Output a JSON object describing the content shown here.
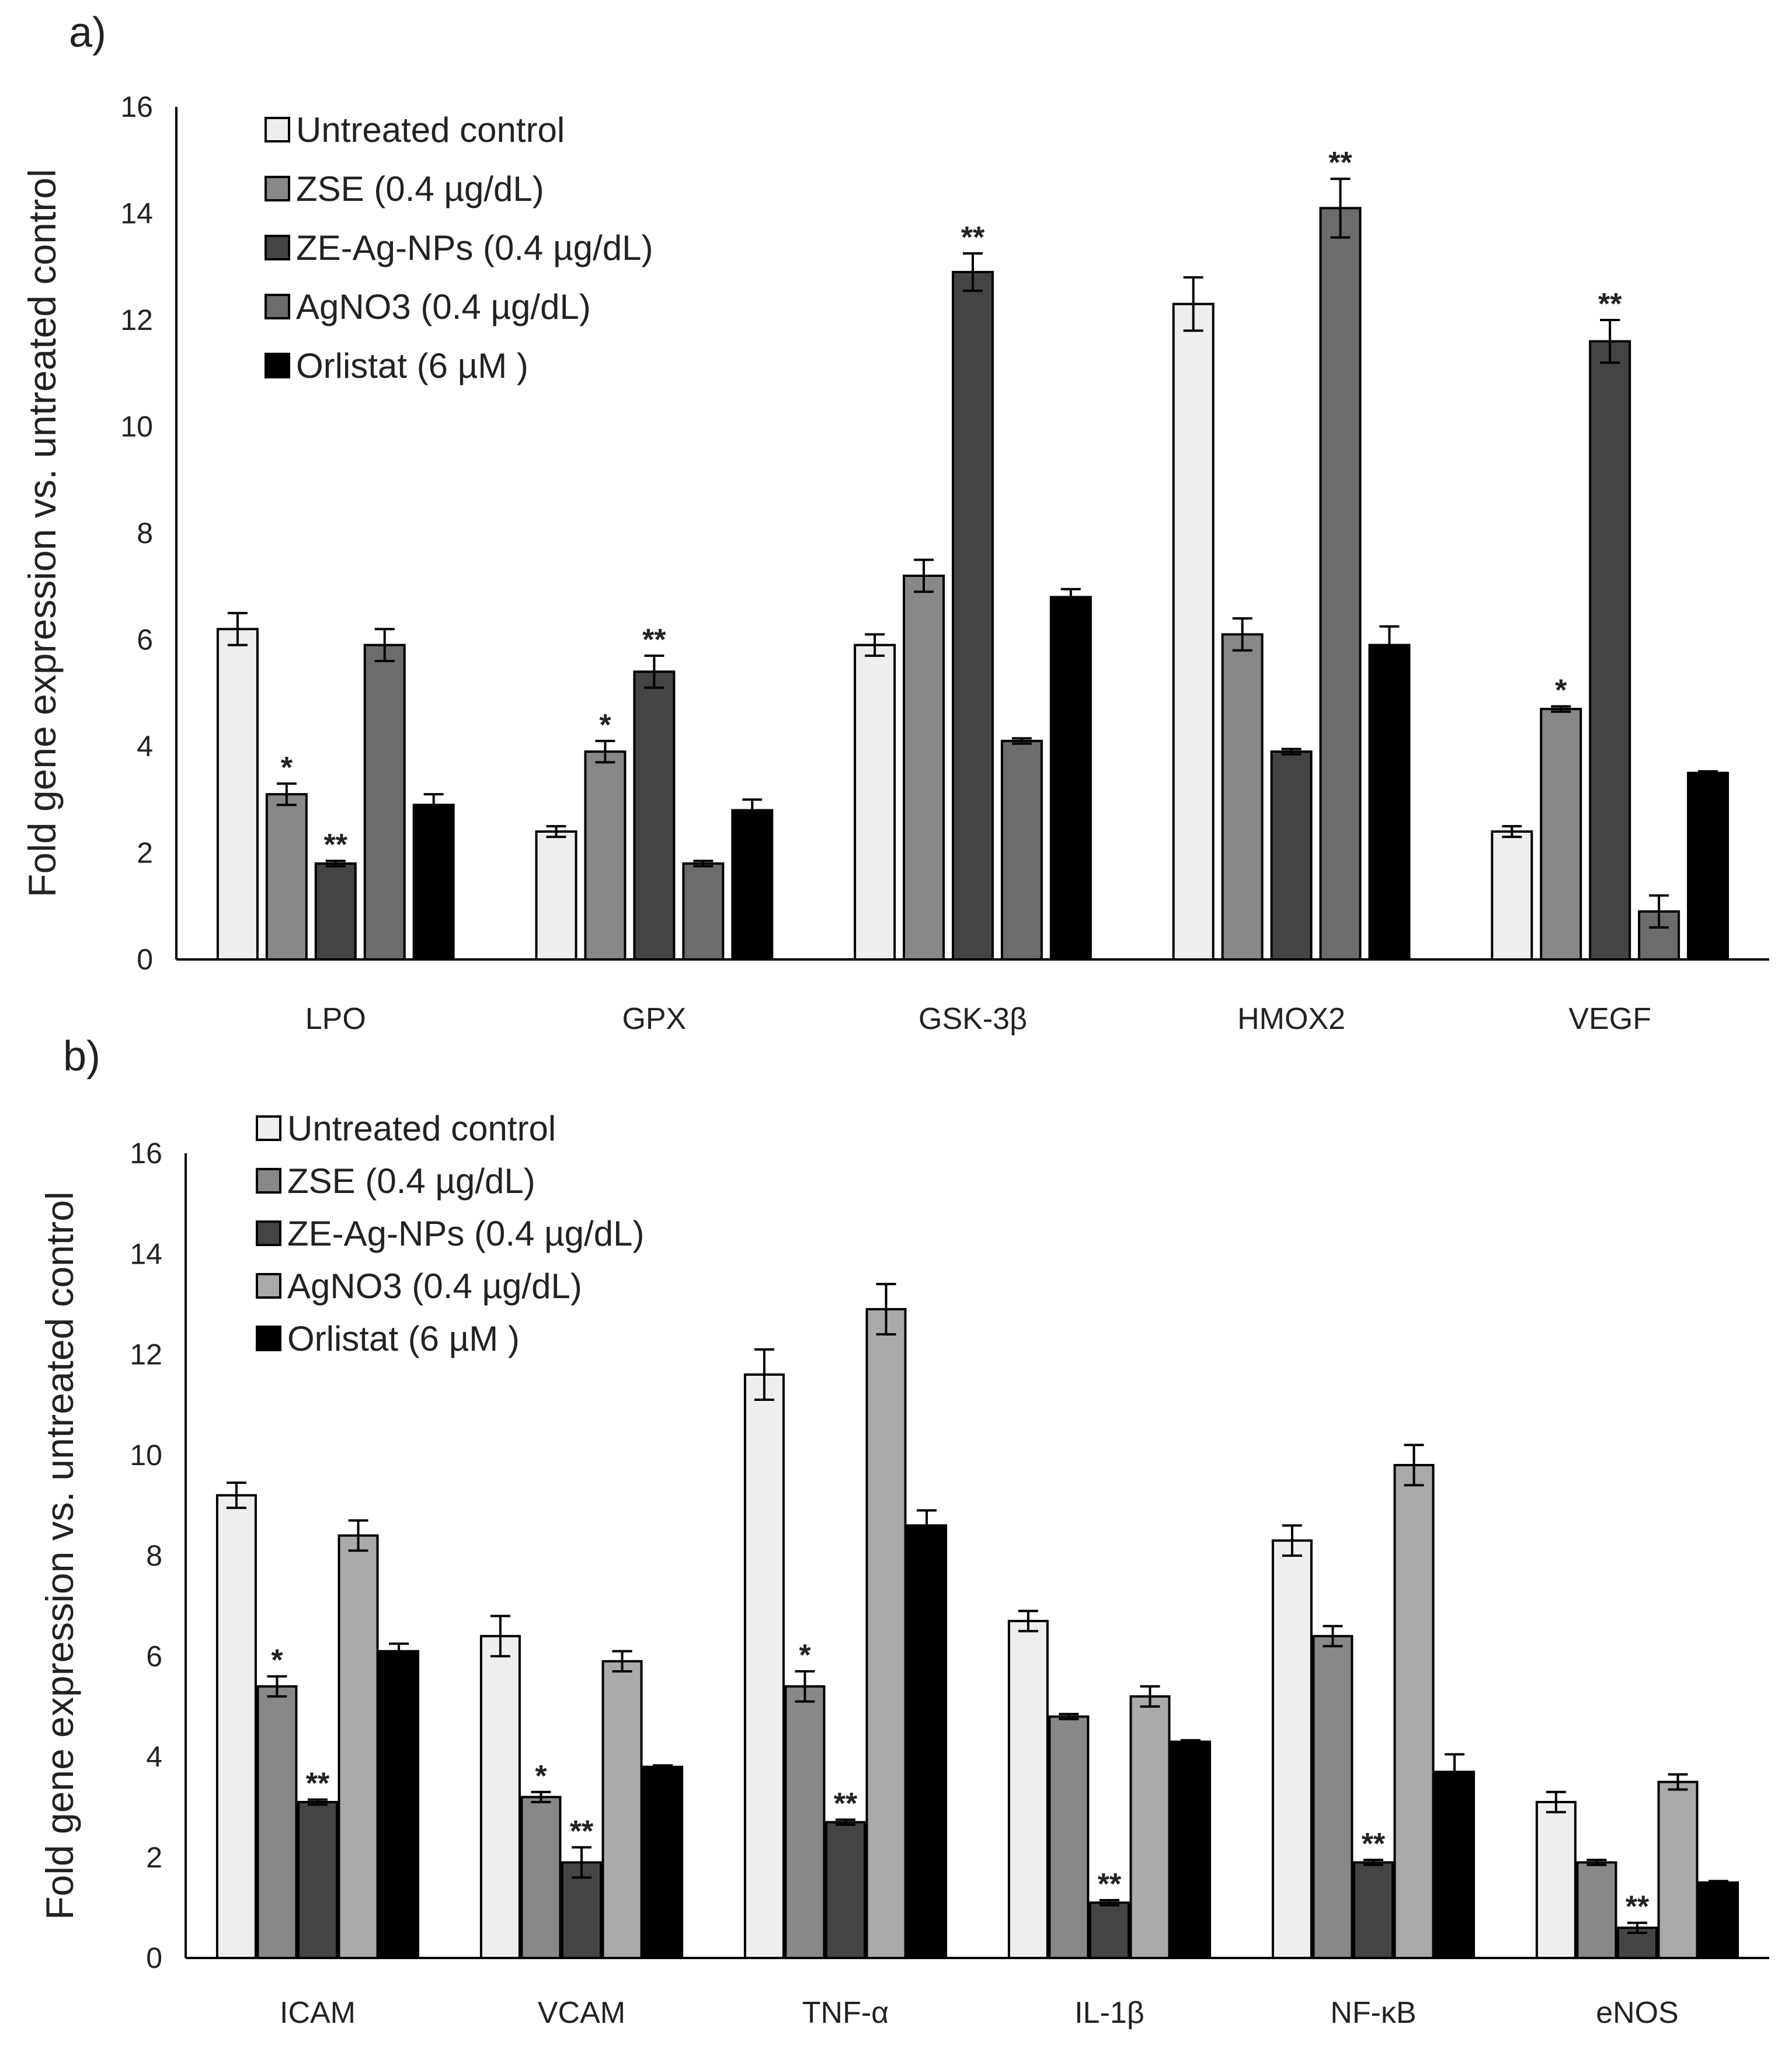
{
  "chart_data": [
    {
      "type": "bar",
      "panel_label": "a)",
      "title": "",
      "xlabel": "",
      "ylabel": "Fold gene expression vs. untreated control",
      "ylim": [
        0,
        16
      ],
      "yticks": [
        "0",
        "2",
        "4",
        "6",
        "8",
        "10",
        "12",
        "14",
        "16"
      ],
      "grid": false,
      "legend_position": "top-left",
      "categories": [
        "LPO",
        "GPX",
        "GSK-3β",
        "HMOX2",
        "VEGF"
      ],
      "series": [
        {
          "name": "Untreated control",
          "color": "#eeeeee",
          "values": [
            6.2,
            2.4,
            5.9,
            12.3,
            2.4
          ],
          "errors": [
            0.3,
            0.1,
            0.2,
            0.5,
            0.1
          ],
          "sig": [
            "",
            "",
            "",
            "",
            ""
          ]
        },
        {
          "name": "ZSE (0.4 µg/dL)",
          "color": "#888888",
          "values": [
            3.1,
            3.9,
            7.2,
            6.1,
            4.7
          ],
          "errors": [
            0.2,
            0.2,
            0.3,
            0.3,
            0.05
          ],
          "sig": [
            "*",
            "*",
            "",
            "",
            "*"
          ]
        },
        {
          "name": "ZE-Ag-NPs (0.4 µg/dL)",
          "color": "#444444",
          "values": [
            1.8,
            5.4,
            12.9,
            3.9,
            11.6
          ],
          "errors": [
            0.05,
            0.3,
            0.35,
            0.05,
            0.4
          ],
          "sig": [
            "**",
            "**",
            "**",
            "",
            "**"
          ]
        },
        {
          "name": "AgNO3 (0.4 µg/dL)",
          "color": "#6e6b6b",
          "values": [
            5.9,
            1.8,
            4.1,
            14.1,
            0.9
          ],
          "errors": [
            0.3,
            0.05,
            0.05,
            0.55,
            0.3
          ],
          "sig": [
            "",
            "",
            "",
            "**",
            ""
          ]
        },
        {
          "name": "Orlistat (6 µM )",
          "color": "#000000",
          "values": [
            2.9,
            2.8,
            6.8,
            5.9,
            3.5
          ],
          "errors": [
            0.2,
            0.2,
            0.15,
            0.35,
            0.03
          ],
          "sig": [
            "",
            "",
            "",
            "",
            ""
          ]
        }
      ]
    },
    {
      "type": "bar",
      "panel_label": "b)",
      "title": "",
      "xlabel": "",
      "ylabel": "Fold gene expression vs. untreated control",
      "ylim": [
        0,
        16
      ],
      "yticks": [
        "0",
        "2",
        "4",
        "6",
        "8",
        "10",
        "12",
        "14",
        "16"
      ],
      "grid": false,
      "legend_position": "top-left",
      "categories": [
        "ICAM",
        "VCAM",
        "TNF-α",
        "IL-1β",
        "NF-κB",
        "eNOS"
      ],
      "series": [
        {
          "name": "Untreated control",
          "color": "#eeeeee",
          "values": [
            9.2,
            6.4,
            11.6,
            6.7,
            8.3,
            3.1
          ],
          "errors": [
            0.25,
            0.4,
            0.5,
            0.2,
            0.3,
            0.2
          ],
          "sig": [
            "",
            "",
            "",
            "",
            "",
            ""
          ]
        },
        {
          "name": "ZSE (0.4 µg/dL)",
          "color": "#888888",
          "values": [
            5.4,
            3.2,
            5.4,
            4.8,
            6.4,
            1.9
          ],
          "errors": [
            0.2,
            0.1,
            0.3,
            0.05,
            0.2,
            0.05
          ],
          "sig": [
            "*",
            "*",
            "*",
            "",
            "",
            ""
          ]
        },
        {
          "name": "ZE-Ag-NPs (0.4 µg/dL)",
          "color": "#444444",
          "values": [
            3.1,
            1.9,
            2.7,
            1.1,
            1.9,
            0.6
          ],
          "errors": [
            0.05,
            0.3,
            0.05,
            0.05,
            0.05,
            0.1
          ],
          "sig": [
            "**",
            "**",
            "**",
            "**",
            "**",
            "**"
          ]
        },
        {
          "name": "AgNO3 (0.4 µg/dL)",
          "color": "#aaaaaa",
          "values": [
            8.4,
            5.9,
            12.9,
            5.2,
            9.8,
            3.5
          ],
          "errors": [
            0.3,
            0.2,
            0.5,
            0.2,
            0.4,
            0.15
          ],
          "sig": [
            "",
            "",
            "",
            "",
            "",
            ""
          ]
        },
        {
          "name": "Orlistat (6 µM )",
          "color": "#000000",
          "values": [
            6.1,
            3.8,
            8.6,
            4.3,
            3.7,
            1.5
          ],
          "errors": [
            0.15,
            0.03,
            0.3,
            0.03,
            0.35,
            0.03
          ],
          "sig": [
            "",
            "",
            "",
            "",
            "",
            ""
          ]
        }
      ]
    }
  ]
}
